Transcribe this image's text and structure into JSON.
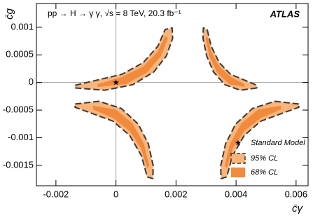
{
  "chart_data": {
    "type": "contour",
    "title": "pp → H → γ γ, √s = 8 TeV, 20.3 fb⁻¹",
    "experiment": "ATLAS",
    "xlabel": "c̄γ",
    "ylabel": "c̄g",
    "xlim": [
      -0.00265,
      0.0064
    ],
    "ylim": [
      -0.00187,
      0.00143
    ],
    "xticks": [
      -0.002,
      0,
      0.002,
      0.004,
      0.006
    ],
    "yticks": [
      -0.0015,
      -0.001,
      -0.0005,
      0,
      0.0005,
      0.001
    ],
    "legend": "lower right",
    "points": {
      "name": "Standard Model",
      "color": "#000000",
      "x": [
        0
      ],
      "y": [
        0
      ]
    },
    "series": [
      {
        "name": "95% CL",
        "color": "#fbb47a",
        "outline": "#3a3a3a",
        "regions": [
          {
            "x": [
              -0.00136,
              -0.00037,
              0.00056,
              0.00126,
              0.00168,
              0.00189,
              0.00187,
              0.00164,
              0.0014,
              0.00091,
              0.00021,
              -0.00073,
              -0.00136
            ],
            "y": [
              -0.0001,
              -0.00014,
              -4e-05,
              0.00019,
              0.00048,
              0.0008,
              0.00099,
              0.00096,
              0.00066,
              0.00036,
              0.00015,
              3e-05,
              -5e-05
            ]
          },
          {
            "x": [
              0.00469,
              0.00414,
              0.00363,
              0.00325,
              0.00302,
              0.0029,
              0.00291,
              0.00304,
              0.00317,
              0.00344,
              0.00381,
              0.00434,
              0.00469
            ],
            "y": [
              -0.0001,
              -0.00014,
              -4e-05,
              0.00019,
              0.00048,
              0.0008,
              0.00099,
              0.00096,
              0.00066,
              0.00036,
              0.00015,
              3e-05,
              -5e-05
            ]
          },
          {
            "x": [
              -0.00136,
              -0.00057,
              0.00018,
              0.00074,
              0.00108,
              0.00124,
              0.00123,
              0.00104,
              0.00085,
              0.00046,
              -0.0001,
              -0.00085,
              -0.00136
            ],
            "y": [
              -0.00039,
              -0.00034,
              -0.00047,
              -0.00075,
              -0.00111,
              -0.00151,
              -0.00174,
              -0.00171,
              -0.00133,
              -0.00096,
              -0.0007,
              -0.00055,
              -0.00045
            ]
          },
          {
            "x": [
              0.00609,
              0.0053,
              0.00455,
              0.00399,
              0.00365,
              0.00349,
              0.0035,
              0.00369,
              0.00388,
              0.00427,
              0.00483,
              0.00558,
              0.00609
            ],
            "y": [
              -0.00039,
              -0.00034,
              -0.00047,
              -0.00075,
              -0.00111,
              -0.00151,
              -0.00174,
              -0.00171,
              -0.00133,
              -0.00096,
              -0.0007,
              -0.00055,
              -0.00045
            ]
          }
        ]
      },
      {
        "name": "68% CL",
        "color": "#f08a3c",
        "regions": [
          {
            "x": [
              -0.00061,
              0.00033,
              0.00103,
              0.0015,
              0.00173,
              0.00164,
              0.00138,
              0.00091,
              0.00021,
              -0.00061
            ],
            "y": [
              -8e-05,
              -3e-05,
              0.00018,
              0.00048,
              0.0008,
              0.00084,
              0.00055,
              0.00029,
              0.0001,
              -3e-05
            ]
          },
          {
            "x": [
              0.00428,
              0.00377,
              0.00337,
              0.00311,
              0.00299,
              0.00304,
              0.00318,
              0.00344,
              0.00382,
              0.00428
            ],
            "y": [
              -8e-05,
              -3e-05,
              0.00018,
              0.00048,
              0.0008,
              0.00084,
              0.00055,
              0.00029,
              0.0001,
              -3e-05
            ]
          },
          {
            "x": [
              -0.00076,
              -1e-05,
              0.00055,
              0.00093,
              0.00111,
              0.00104,
              0.00083,
              0.00046,
              -0.0001,
              -0.00076
            ],
            "y": [
              -0.00042,
              -0.00049,
              -0.00074,
              -0.00111,
              -0.00151,
              -0.00155,
              -0.00119,
              -0.00088,
              -0.00064,
              -0.00049
            ]
          },
          {
            "x": [
              0.00549,
              0.00474,
              0.00418,
              0.0038,
              0.00362,
              0.00369,
              0.0039,
              0.00427,
              0.00483,
              0.00549
            ],
            "y": [
              -0.00042,
              -0.00049,
              -0.00074,
              -0.00111,
              -0.00151,
              -0.00155,
              -0.00119,
              -0.00088,
              -0.00064,
              -0.00049
            ]
          }
        ]
      }
    ]
  }
}
